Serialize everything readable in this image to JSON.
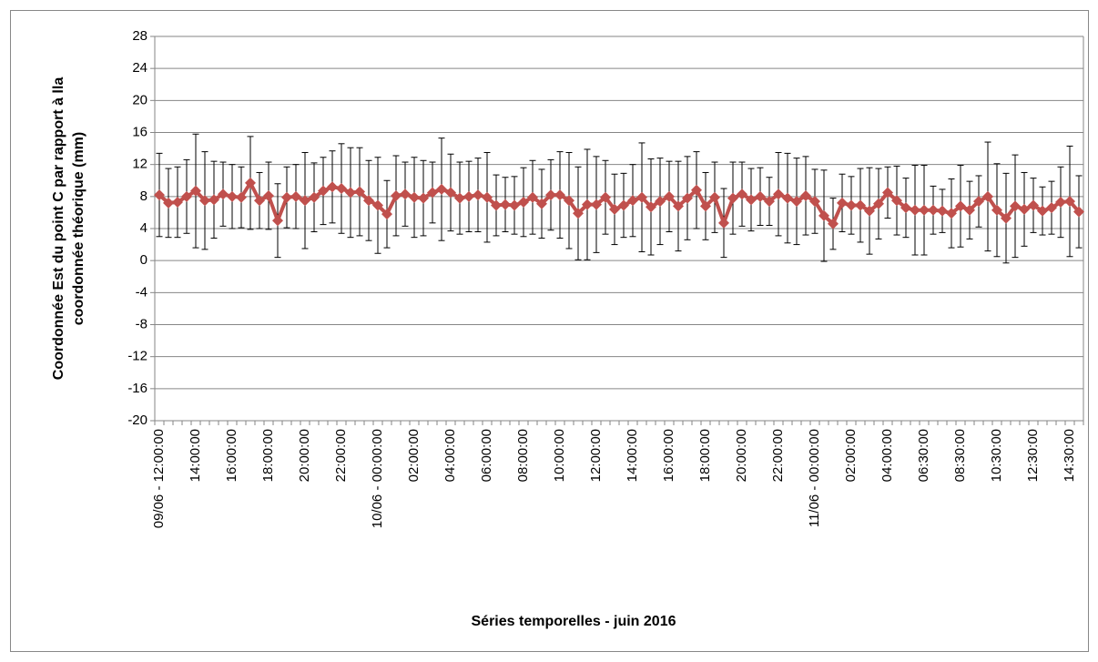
{
  "chart_data": {
    "type": "line",
    "xlabel": "Séries temporelles - juin 2016",
    "ylabel": [
      "Coordonnée Est du point C par rapport à lla",
      "coordonnée théorique (mm)"
    ],
    "categories": [
      "09/06 - 12:00:00",
      null,
      null,
      null,
      "14:00:00",
      null,
      null,
      null,
      "16:00:00",
      null,
      null,
      null,
      "18:00:00",
      null,
      null,
      null,
      "20:00:00",
      null,
      null,
      null,
      "22:00:00",
      null,
      null,
      null,
      "10/06 - 00:00:00",
      null,
      null,
      null,
      "02:00:00",
      null,
      null,
      null,
      "04:00:00",
      null,
      null,
      null,
      "06:00:00",
      null,
      null,
      null,
      "08:00:00",
      null,
      null,
      null,
      "10:00:00",
      null,
      null,
      null,
      "12:00:00",
      null,
      null,
      null,
      "14:00:00",
      null,
      null,
      null,
      "16:00:00",
      null,
      null,
      null,
      "18:00:00",
      null,
      null,
      null,
      "20:00:00",
      null,
      null,
      null,
      "22:00:00",
      null,
      null,
      null,
      "11/06 - 00:00:00",
      null,
      null,
      null,
      "02:00:00",
      null,
      null,
      null,
      "04:00:00",
      null,
      null,
      null,
      "06:30:00",
      null,
      null,
      null,
      "08:30:00",
      null,
      null,
      null,
      "10:30:00",
      null,
      null,
      null,
      "12:30:00",
      null,
      null,
      null,
      "14:30:00",
      null
    ],
    "series": [
      {
        "color": "#c0504d",
        "values": [
          8.2,
          7.2,
          7.3,
          8.0,
          8.7,
          7.5,
          7.6,
          8.3,
          8.0,
          7.9,
          9.7,
          7.5,
          8.1,
          5.0,
          7.9,
          8.0,
          7.5,
          7.9,
          8.7,
          9.2,
          9.0,
          8.5,
          8.6,
          7.5,
          6.9,
          5.8,
          8.1,
          8.3,
          7.9,
          7.8,
          8.5,
          8.9,
          8.5,
          7.8,
          8.0,
          8.2,
          7.9,
          6.9,
          7.0,
          6.9,
          7.3,
          7.9,
          7.1,
          8.2,
          8.2,
          7.5,
          5.9,
          7.0,
          7.0,
          7.9,
          6.4,
          6.9,
          7.5,
          7.9,
          6.7,
          7.4,
          8.0,
          6.8,
          7.8,
          8.8,
          6.8,
          7.9,
          4.7,
          7.8,
          8.3,
          7.6,
          8.0,
          7.4,
          8.3,
          7.8,
          7.4,
          8.1,
          7.4,
          5.6,
          4.6,
          7.2,
          6.9,
          6.9,
          6.2,
          7.1,
          8.5,
          7.5,
          6.6,
          6.3,
          6.3,
          6.3,
          6.2,
          5.9,
          6.8,
          6.3,
          7.4,
          8.0,
          6.3,
          5.3,
          6.8,
          6.4,
          6.9,
          6.2,
          6.6,
          7.3,
          7.4,
          6.1
        ],
        "errors": [
          5.2,
          4.3,
          4.4,
          4.6,
          7.1,
          6.1,
          4.8,
          4.0,
          4.0,
          3.8,
          5.8,
          3.5,
          4.2,
          4.6,
          3.8,
          4.0,
          6.0,
          4.3,
          4.2,
          4.5,
          5.6,
          5.6,
          5.5,
          5.0,
          6.0,
          4.2,
          5.0,
          4.0,
          5.0,
          4.7,
          3.8,
          6.4,
          4.8,
          4.5,
          4.4,
          4.6,
          5.6,
          3.8,
          3.4,
          3.6,
          4.3,
          4.6,
          4.3,
          4.4,
          5.4,
          6.0,
          5.8,
          6.9,
          6.0,
          4.6,
          4.4,
          4.0,
          4.5,
          6.8,
          6.0,
          5.4,
          4.4,
          5.6,
          5.2,
          4.8,
          4.2,
          4.4,
          4.3,
          4.5,
          4.0,
          3.9,
          3.6,
          3.0,
          5.2,
          5.6,
          5.4,
          4.9,
          4.0,
          5.7,
          3.2,
          3.6,
          3.6,
          4.6,
          5.4,
          4.4,
          3.2,
          4.3,
          3.7,
          5.6,
          5.6,
          3.0,
          2.7,
          4.3,
          5.1,
          3.6,
          3.2,
          6.8,
          5.8,
          5.6,
          6.4,
          4.6,
          3.4,
          3.0,
          3.3,
          4.4,
          6.9,
          4.5
        ]
      }
    ],
    "ylim": [
      -20,
      28
    ],
    "yticks": [
      -20,
      -16,
      -12,
      -8,
      -4,
      0,
      4,
      8,
      12,
      16,
      20,
      24,
      28
    ],
    "grid": true
  }
}
